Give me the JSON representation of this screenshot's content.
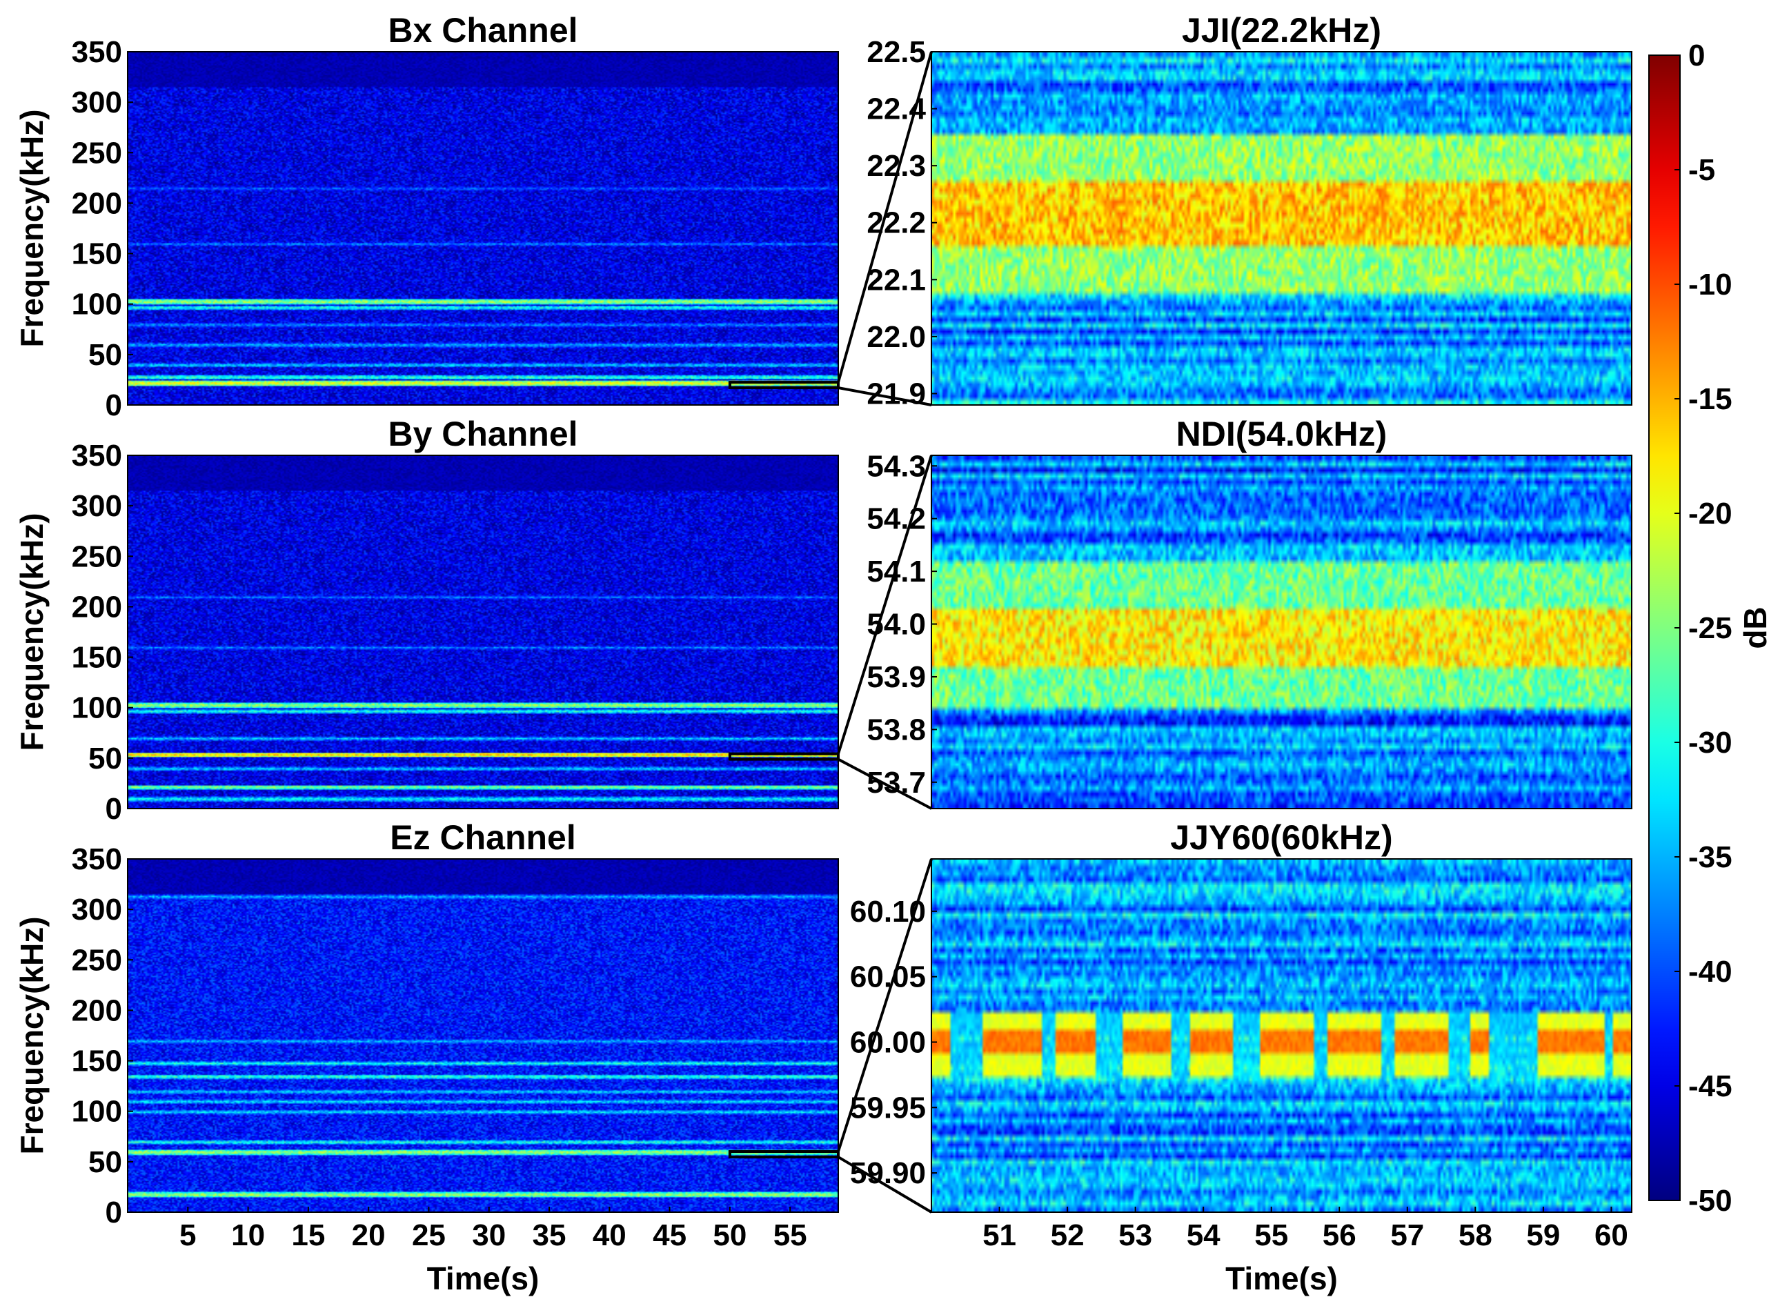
{
  "figure": {
    "colorbar": {
      "label": "dB",
      "ticks": [
        0,
        -5,
        -10,
        -15,
        -20,
        -25,
        -30,
        -35,
        -40,
        -45,
        -50
      ],
      "range": [
        -50,
        0
      ],
      "colormap": "jet"
    }
  },
  "chart_data": [
    {
      "type": "heatmap",
      "title": "Bx Channel",
      "ylabel": "Frequency(kHz)",
      "xlabel": "",
      "xlim": [
        0,
        59
      ],
      "ylim": [
        0,
        350
      ],
      "xticks": [],
      "yticks": [
        0,
        50,
        100,
        150,
        200,
        250,
        300,
        350
      ],
      "ytick_labels": [
        "0",
        "50",
        "100",
        "150",
        "200",
        "250",
        "300",
        "350"
      ],
      "background_db": -45,
      "bands": [
        {
          "f": 103,
          "db": -22
        },
        {
          "f": 97,
          "db": -30
        },
        {
          "f": 22.2,
          "db": -18
        },
        {
          "f": 28,
          "db": -28
        },
        {
          "f": 40,
          "db": -33
        },
        {
          "f": 60,
          "db": -34
        },
        {
          "f": 80,
          "db": -36
        },
        {
          "f": 160,
          "db": -37
        },
        {
          "f": 215,
          "db": -38
        }
      ],
      "zoom_box": {
        "t": [
          50,
          59
        ],
        "f": [
          21.9,
          22.5
        ]
      }
    },
    {
      "type": "heatmap",
      "title": "By Channel",
      "ylabel": "Frequency(kHz)",
      "xlabel": "",
      "xlim": [
        0,
        59
      ],
      "ylim": [
        0,
        350
      ],
      "xticks": [],
      "yticks": [
        0,
        50,
        100,
        150,
        200,
        250,
        300,
        350
      ],
      "ytick_labels": [
        "0",
        "50",
        "100",
        "150",
        "200",
        "250",
        "300",
        "350"
      ],
      "background_db": -45,
      "bands": [
        {
          "f": 103,
          "db": -22
        },
        {
          "f": 97,
          "db": -30
        },
        {
          "f": 54,
          "db": -16
        },
        {
          "f": 22,
          "db": -24
        },
        {
          "f": 10,
          "db": -30
        },
        {
          "f": 40,
          "db": -33
        },
        {
          "f": 70,
          "db": -34
        },
        {
          "f": 160,
          "db": -37
        },
        {
          "f": 210,
          "db": -38
        }
      ],
      "zoom_box": {
        "t": [
          50,
          59
        ],
        "f": [
          53.7,
          54.3
        ]
      }
    },
    {
      "type": "heatmap",
      "title": "Ez Channel",
      "ylabel": "Frequency(kHz)",
      "xlabel": "Time(s)",
      "xlim": [
        0,
        59
      ],
      "ylim": [
        0,
        350
      ],
      "xticks": [
        5,
        10,
        15,
        20,
        25,
        30,
        35,
        40,
        45,
        50,
        55
      ],
      "xtick_labels": [
        "5",
        "10",
        "15",
        "20",
        "25",
        "30",
        "35",
        "40",
        "45",
        "50",
        "55"
      ],
      "yticks": [
        0,
        50,
        100,
        150,
        200,
        250,
        300,
        350
      ],
      "ytick_labels": [
        "0",
        "50",
        "100",
        "150",
        "200",
        "250",
        "300",
        "350"
      ],
      "background_db": -43,
      "bands": [
        {
          "f": 60,
          "db": -22
        },
        {
          "f": 18,
          "db": -22
        },
        {
          "f": 135,
          "db": -28
        },
        {
          "f": 148,
          "db": -30
        },
        {
          "f": 100,
          "db": -32
        },
        {
          "f": 110,
          "db": -32
        },
        {
          "f": 170,
          "db": -34
        },
        {
          "f": 120,
          "db": -33
        },
        {
          "f": 70,
          "db": -30
        },
        {
          "f": 313,
          "db": -34
        }
      ],
      "zoom_box": {
        "t": [
          50,
          59
        ],
        "f": [
          59.87,
          60.13
        ]
      }
    },
    {
      "type": "heatmap",
      "title": "JJI(22.2kHz)",
      "ylabel": "",
      "xlabel": "",
      "xlim": [
        50,
        60.3
      ],
      "ylim": [
        21.88,
        22.5
      ],
      "xticks": [],
      "yticks": [
        21.9,
        22.0,
        22.1,
        22.2,
        22.3,
        22.4,
        22.5
      ],
      "ytick_labels": [
        "21.9",
        "22.0",
        "22.1",
        "22.2",
        "22.3",
        "22.4",
        "22.5"
      ],
      "signal_band": {
        "f": [
          22.12,
          22.32
        ],
        "peak_db": -16
      },
      "background_db": -36
    },
    {
      "type": "heatmap",
      "title": "NDI(54.0kHz)",
      "ylabel": "",
      "xlabel": "",
      "xlim": [
        50,
        60.3
      ],
      "ylim": [
        53.65,
        54.32
      ],
      "xticks": [],
      "yticks": [
        53.7,
        53.8,
        53.9,
        54.0,
        54.1,
        54.2,
        54.3
      ],
      "ytick_labels": [
        "53.7",
        "53.8",
        "53.9",
        "54.0",
        "54.1",
        "54.2",
        "54.3"
      ],
      "signal_band": {
        "f": [
          53.88,
          54.08
        ],
        "peak_db": -18
      },
      "background_db": -38
    },
    {
      "type": "heatmap",
      "title": "JJY60(60kHz)",
      "ylabel": "",
      "xlabel": "Time(s)",
      "xlim": [
        50,
        60.3
      ],
      "ylim": [
        59.87,
        60.14
      ],
      "xticks": [
        51,
        52,
        53,
        54,
        55,
        56,
        57,
        58,
        59,
        60
      ],
      "xtick_labels": [
        "51",
        "52",
        "53",
        "54",
        "55",
        "56",
        "57",
        "58",
        "59",
        "60"
      ],
      "yticks": [
        59.9,
        59.95,
        60.0,
        60.05,
        60.1
      ],
      "ytick_labels": [
        "59.90",
        "59.95",
        "60.00",
        "60.05",
        "60.10"
      ],
      "signal_band": {
        "f": [
          59.985,
          60.02
        ],
        "peak_db": -12
      },
      "on_intervals": [
        [
          50.0,
          50.25
        ],
        [
          50.75,
          51.6
        ],
        [
          51.8,
          52.4
        ],
        [
          52.8,
          53.5
        ],
        [
          53.8,
          54.4
        ],
        [
          54.8,
          55.6
        ],
        [
          55.8,
          56.6
        ],
        [
          56.8,
          57.6
        ],
        [
          57.9,
          58.2
        ],
        [
          58.9,
          59.9
        ],
        [
          60.0,
          60.3
        ]
      ],
      "background_db": -36
    }
  ]
}
